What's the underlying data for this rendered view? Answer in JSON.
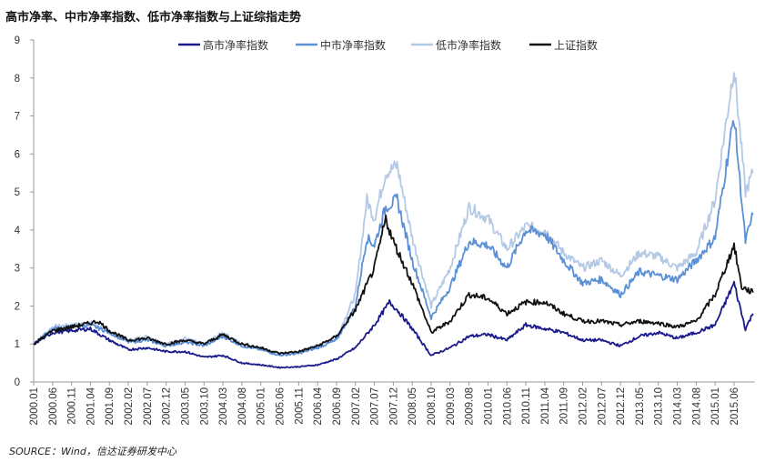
{
  "chart_data": {
    "type": "line",
    "title": "高市净率、中市净率指数、低市净率指数与上证综指走势",
    "source": "SOURCE：Wind，信达证券研发中心",
    "xlabel": "",
    "ylabel": "",
    "ylim": [
      0,
      9
    ],
    "yticks": [
      "0",
      "1",
      "2",
      "3",
      "4",
      "5",
      "6",
      "7",
      "8",
      "9"
    ],
    "xticks": [
      "2000.01",
      "2000.06",
      "2000.11",
      "2001.04",
      "2001.09",
      "2002.02",
      "2002.07",
      "2002.12",
      "2003.05",
      "2003.10",
      "2004.03",
      "2004.08",
      "2005.01",
      "2005.06",
      "2005.11",
      "2006.04",
      "2006.09",
      "2007.02",
      "2007.07",
      "2007.12",
      "2008.05",
      "2008.10",
      "2009.03",
      "2009.08",
      "2010.01",
      "2010.06",
      "2010.11",
      "2011.04",
      "2011.09",
      "2012.02",
      "2012.07",
      "2012.12",
      "2013.05",
      "2013.10",
      "2014.03",
      "2014.08",
      "2015.01",
      "2015.06"
    ],
    "xrange": [
      "2000.01",
      "2015.11"
    ],
    "legend_position": "top",
    "series": [
      {
        "name": "高市净率指数",
        "color": "#1a1a8c",
        "points": [
          [
            "2000.01",
            1.0
          ],
          [
            "2000.06",
            1.3
          ],
          [
            "2000.11",
            1.35
          ],
          [
            "2001.04",
            1.4
          ],
          [
            "2001.09",
            1.1
          ],
          [
            "2002.02",
            0.85
          ],
          [
            "2002.07",
            0.9
          ],
          [
            "2002.12",
            0.8
          ],
          [
            "2003.05",
            0.8
          ],
          [
            "2003.10",
            0.65
          ],
          [
            "2004.03",
            0.7
          ],
          [
            "2004.08",
            0.5
          ],
          [
            "2005.01",
            0.45
          ],
          [
            "2005.06",
            0.38
          ],
          [
            "2005.11",
            0.4
          ],
          [
            "2006.04",
            0.45
          ],
          [
            "2006.09",
            0.6
          ],
          [
            "2007.02",
            0.9
          ],
          [
            "2007.07",
            1.5
          ],
          [
            "2007.11",
            2.1
          ],
          [
            "2008.01",
            1.9
          ],
          [
            "2008.05",
            1.4
          ],
          [
            "2008.10",
            0.7
          ],
          [
            "2009.03",
            0.9
          ],
          [
            "2009.08",
            1.2
          ],
          [
            "2010.01",
            1.25
          ],
          [
            "2010.06",
            1.1
          ],
          [
            "2010.11",
            1.5
          ],
          [
            "2011.04",
            1.4
          ],
          [
            "2011.09",
            1.3
          ],
          [
            "2012.02",
            1.1
          ],
          [
            "2012.07",
            1.1
          ],
          [
            "2012.12",
            0.95
          ],
          [
            "2013.05",
            1.2
          ],
          [
            "2013.10",
            1.3
          ],
          [
            "2014.03",
            1.15
          ],
          [
            "2014.08",
            1.3
          ],
          [
            "2015.01",
            1.5
          ],
          [
            "2015.06",
            2.6
          ],
          [
            "2015.09",
            1.4
          ],
          [
            "2015.11",
            1.8
          ]
        ]
      },
      {
        "name": "中市净率指数",
        "color": "#5b8fd6",
        "points": [
          [
            "2000.01",
            1.0
          ],
          [
            "2000.06",
            1.4
          ],
          [
            "2000.11",
            1.45
          ],
          [
            "2001.04",
            1.5
          ],
          [
            "2001.09",
            1.3
          ],
          [
            "2002.02",
            1.05
          ],
          [
            "2002.07",
            1.1
          ],
          [
            "2002.12",
            0.95
          ],
          [
            "2003.05",
            1.05
          ],
          [
            "2003.10",
            0.95
          ],
          [
            "2004.03",
            1.2
          ],
          [
            "2004.08",
            0.95
          ],
          [
            "2005.01",
            0.85
          ],
          [
            "2005.06",
            0.7
          ],
          [
            "2005.11",
            0.75
          ],
          [
            "2006.04",
            0.9
          ],
          [
            "2006.09",
            1.1
          ],
          [
            "2007.02",
            2.0
          ],
          [
            "2007.05",
            3.8
          ],
          [
            "2007.07",
            3.6
          ],
          [
            "2007.10",
            4.6
          ],
          [
            "2008.01",
            4.8
          ],
          [
            "2008.05",
            3.2
          ],
          [
            "2008.10",
            1.7
          ],
          [
            "2009.03",
            2.5
          ],
          [
            "2009.08",
            3.7
          ],
          [
            "2010.01",
            3.6
          ],
          [
            "2010.06",
            3.0
          ],
          [
            "2010.11",
            4.0
          ],
          [
            "2011.04",
            3.9
          ],
          [
            "2011.09",
            3.2
          ],
          [
            "2012.02",
            2.6
          ],
          [
            "2012.07",
            2.7
          ],
          [
            "2012.12",
            2.3
          ],
          [
            "2013.05",
            2.9
          ],
          [
            "2013.10",
            2.8
          ],
          [
            "2014.03",
            2.7
          ],
          [
            "2014.08",
            3.2
          ],
          [
            "2015.01",
            3.8
          ],
          [
            "2015.06",
            7.0
          ],
          [
            "2015.09",
            3.7
          ],
          [
            "2015.11",
            4.4
          ]
        ]
      },
      {
        "name": "低市净率指数",
        "color": "#b4c9e6",
        "points": [
          [
            "2000.01",
            1.0
          ],
          [
            "2000.06",
            1.45
          ],
          [
            "2000.11",
            1.5
          ],
          [
            "2001.04",
            1.55
          ],
          [
            "2001.09",
            1.35
          ],
          [
            "2002.02",
            1.1
          ],
          [
            "2002.07",
            1.2
          ],
          [
            "2002.12",
            1.0
          ],
          [
            "2003.05",
            1.15
          ],
          [
            "2003.10",
            1.0
          ],
          [
            "2004.03",
            1.3
          ],
          [
            "2004.08",
            1.0
          ],
          [
            "2005.01",
            0.9
          ],
          [
            "2005.06",
            0.72
          ],
          [
            "2005.11",
            0.8
          ],
          [
            "2006.04",
            0.95
          ],
          [
            "2006.09",
            1.15
          ],
          [
            "2007.02",
            2.3
          ],
          [
            "2007.05",
            4.8
          ],
          [
            "2007.07",
            4.3
          ],
          [
            "2007.10",
            5.5
          ],
          [
            "2008.01",
            5.7
          ],
          [
            "2008.05",
            3.8
          ],
          [
            "2008.10",
            2.0
          ],
          [
            "2009.03",
            3.0
          ],
          [
            "2009.08",
            4.6
          ],
          [
            "2010.01",
            4.3
          ],
          [
            "2010.06",
            3.5
          ],
          [
            "2010.11",
            4.1
          ],
          [
            "2011.04",
            4.0
          ],
          [
            "2011.09",
            3.4
          ],
          [
            "2012.02",
            3.0
          ],
          [
            "2012.07",
            3.2
          ],
          [
            "2012.12",
            2.8
          ],
          [
            "2013.05",
            3.4
          ],
          [
            "2013.10",
            3.3
          ],
          [
            "2014.03",
            3.0
          ],
          [
            "2014.08",
            3.4
          ],
          [
            "2015.01",
            4.8
          ],
          [
            "2015.06",
            8.3
          ],
          [
            "2015.09",
            5.0
          ],
          [
            "2015.11",
            5.5
          ]
        ]
      },
      {
        "name": "上证指数",
        "color": "#111111",
        "points": [
          [
            "2000.01",
            1.0
          ],
          [
            "2000.06",
            1.35
          ],
          [
            "2000.11",
            1.45
          ],
          [
            "2001.04",
            1.55
          ],
          [
            "2001.06",
            1.6
          ],
          [
            "2001.09",
            1.35
          ],
          [
            "2002.02",
            1.1
          ],
          [
            "2002.07",
            1.15
          ],
          [
            "2002.12",
            1.0
          ],
          [
            "2003.05",
            1.1
          ],
          [
            "2003.10",
            1.0
          ],
          [
            "2004.03",
            1.25
          ],
          [
            "2004.08",
            1.0
          ],
          [
            "2005.01",
            0.9
          ],
          [
            "2005.06",
            0.75
          ],
          [
            "2005.11",
            0.8
          ],
          [
            "2006.04",
            0.95
          ],
          [
            "2006.09",
            1.2
          ],
          [
            "2007.02",
            1.9
          ],
          [
            "2007.07",
            3.0
          ],
          [
            "2007.10",
            4.3
          ],
          [
            "2007.12",
            3.7
          ],
          [
            "2008.05",
            2.6
          ],
          [
            "2008.10",
            1.3
          ],
          [
            "2009.03",
            1.6
          ],
          [
            "2009.08",
            2.3
          ],
          [
            "2010.01",
            2.2
          ],
          [
            "2010.06",
            1.8
          ],
          [
            "2010.11",
            2.1
          ],
          [
            "2011.04",
            2.1
          ],
          [
            "2011.09",
            1.8
          ],
          [
            "2012.02",
            1.6
          ],
          [
            "2012.07",
            1.6
          ],
          [
            "2012.12",
            1.5
          ],
          [
            "2013.05",
            1.6
          ],
          [
            "2013.10",
            1.55
          ],
          [
            "2014.03",
            1.45
          ],
          [
            "2014.08",
            1.6
          ],
          [
            "2015.01",
            2.3
          ],
          [
            "2015.06",
            3.6
          ],
          [
            "2015.08",
            2.5
          ],
          [
            "2015.11",
            2.35
          ]
        ]
      }
    ]
  }
}
